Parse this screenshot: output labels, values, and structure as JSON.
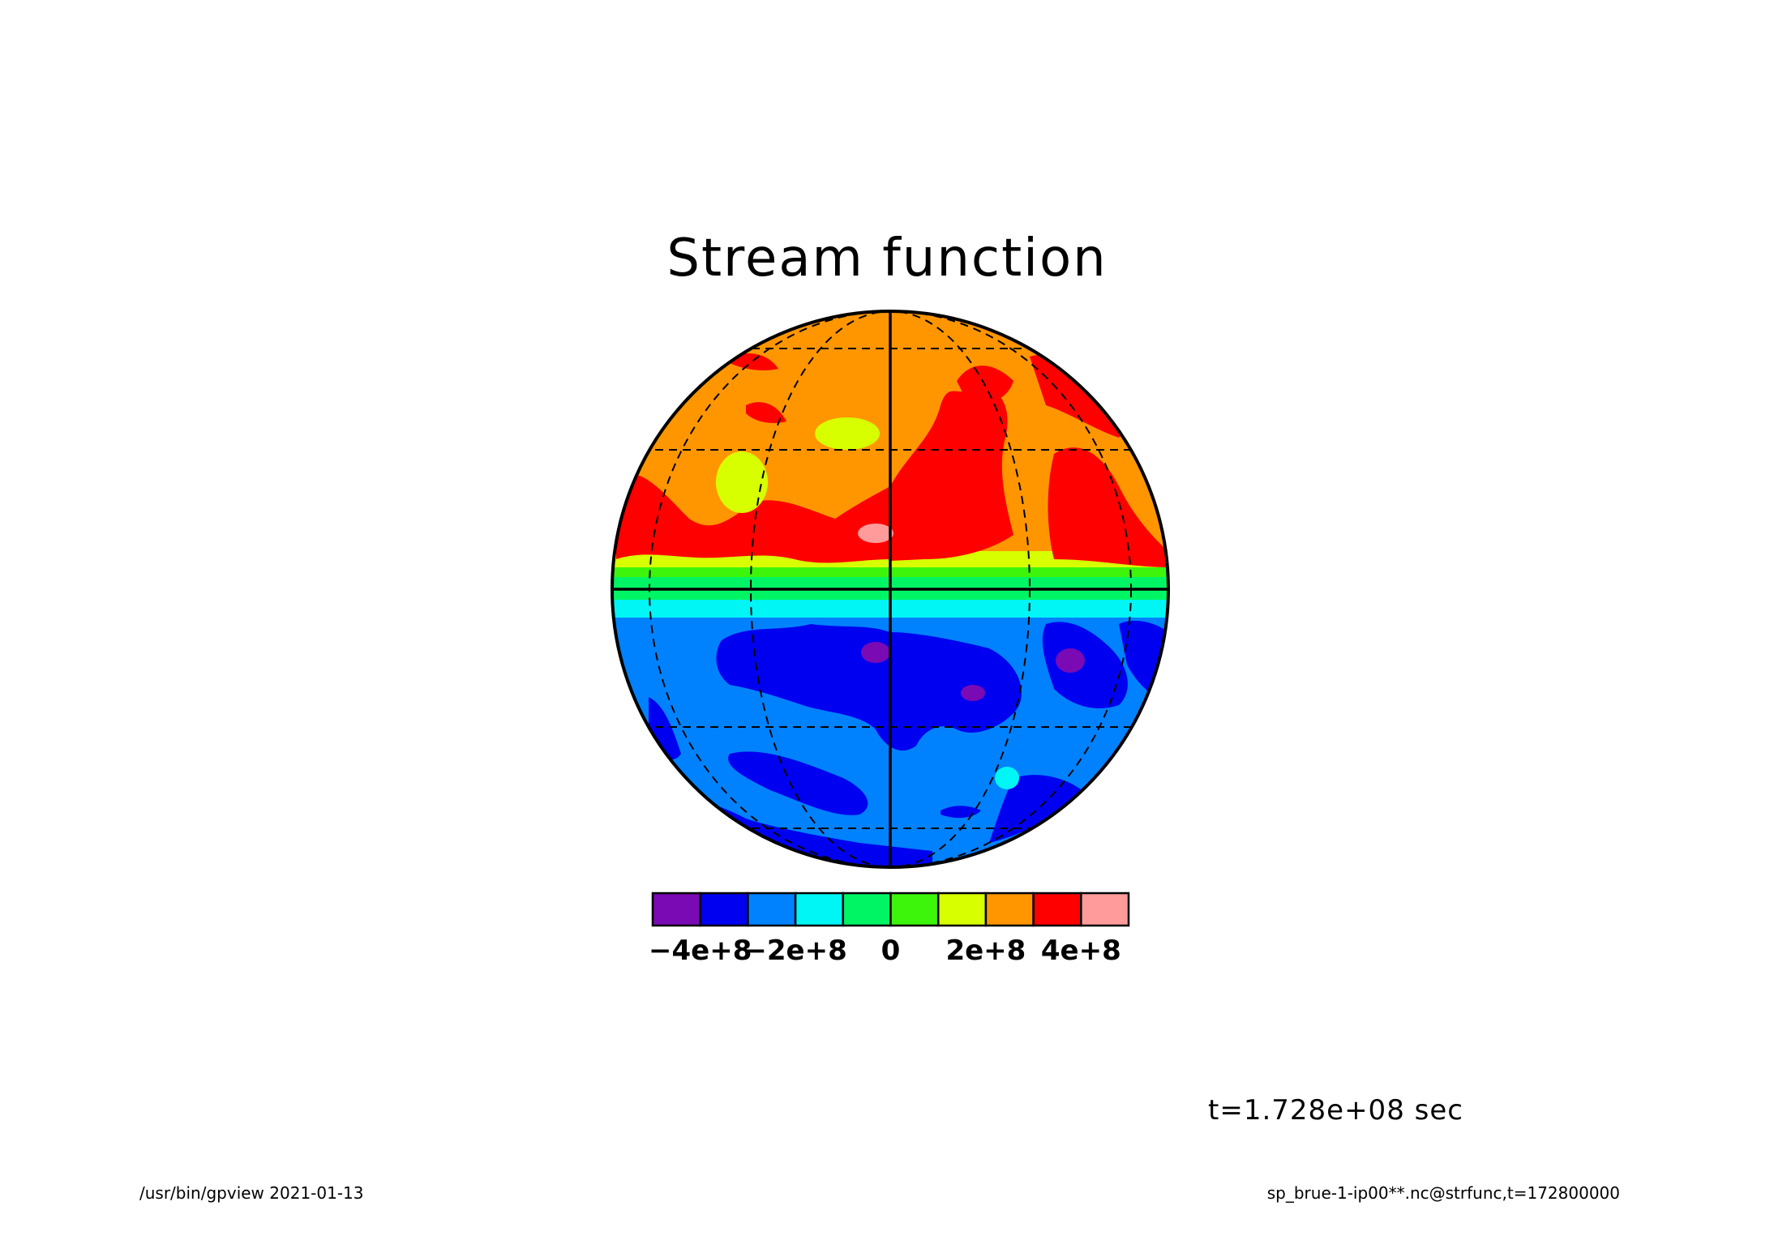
{
  "title": "Stream function",
  "time_label": "t=1.728e+08 sec",
  "footer": {
    "left": "/usr/bin/gpview   2021-01-13",
    "right": "sp_brue-1-ip00**.nc@strfunc,t=172800000"
  },
  "colorbar": {
    "colors": [
      "#7a0ab4",
      "#0000f0",
      "#0082ff",
      "#00f5f5",
      "#00f564",
      "#3cf50a",
      "#d7ff00",
      "#ff9600",
      "#ff0000",
      "#ff9b9b"
    ],
    "tick_labels": [
      "−4e+8",
      "−2e+8",
      "0",
      "2e+8",
      "4e+8"
    ],
    "tick_values": [
      -400000000,
      -200000000,
      0,
      200000000,
      400000000
    ],
    "range": [
      -500000000,
      500000000
    ]
  },
  "map": {
    "projection": "orthographic",
    "graticule": "dashed",
    "hemispheres": [
      {
        "name": "northern",
        "dominant_color": "#ff9600"
      },
      {
        "name": "southern",
        "dominant_color": "#0082ff"
      }
    ]
  }
}
